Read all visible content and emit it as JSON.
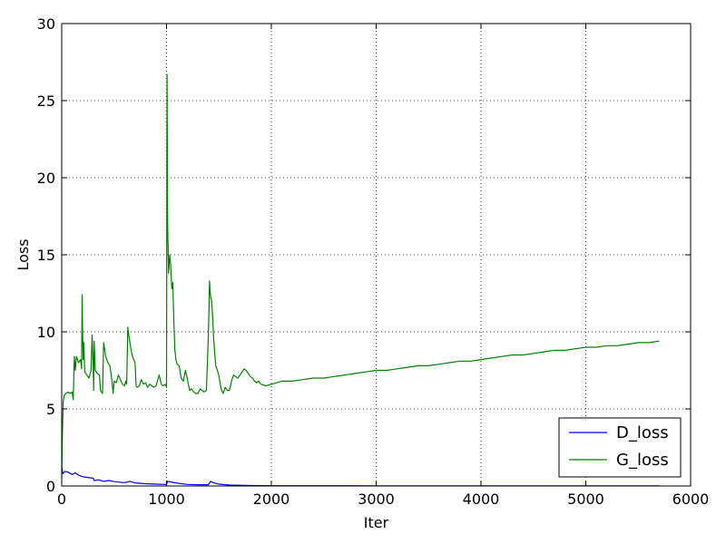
{
  "chart_data": {
    "type": "line",
    "title": "",
    "xlabel": "Iter",
    "ylabel": "Loss",
    "xlim": [
      0,
      6000
    ],
    "ylim": [
      0,
      30
    ],
    "xticks": [
      0,
      1000,
      2000,
      3000,
      4000,
      5000,
      6000
    ],
    "yticks": [
      0,
      5,
      10,
      15,
      20,
      25,
      30
    ],
    "xtick_labels": [
      "0",
      "1000",
      "2000",
      "3000",
      "4000",
      "5000",
      "6000"
    ],
    "ytick_labels": [
      "0",
      "5",
      "10",
      "15",
      "20",
      "25",
      "30"
    ],
    "grid": true,
    "legend_position": "lower-right",
    "series": [
      {
        "name": "D_loss",
        "color": "#0000ff",
        "x": [
          0,
          10,
          30,
          60,
          100,
          130,
          160,
          200,
          250,
          300,
          310,
          350,
          400,
          450,
          500,
          550,
          600,
          650,
          700,
          800,
          900,
          1000,
          1010,
          1100,
          1200,
          1300,
          1400,
          1420,
          1450,
          1500,
          1600,
          1800,
          2000,
          3000,
          4000,
          5000,
          5700
        ],
        "y": [
          1.3,
          0.8,
          0.95,
          0.9,
          0.75,
          0.85,
          0.7,
          0.6,
          0.55,
          0.5,
          0.35,
          0.4,
          0.3,
          0.35,
          0.28,
          0.25,
          0.22,
          0.3,
          0.2,
          0.15,
          0.12,
          0.1,
          0.3,
          0.18,
          0.1,
          0.08,
          0.08,
          0.3,
          0.2,
          0.12,
          0.06,
          0.03,
          0.02,
          0.01,
          0.01,
          0.01,
          0.01
        ]
      },
      {
        "name": "G_loss",
        "color": "#008000",
        "x": [
          0,
          5,
          15,
          25,
          40,
          60,
          80,
          100,
          110,
          120,
          130,
          140,
          160,
          180,
          190,
          195,
          200,
          205,
          210,
          220,
          240,
          260,
          280,
          290,
          300,
          305,
          310,
          320,
          340,
          360,
          370,
          380,
          390,
          400,
          420,
          440,
          460,
          480,
          490,
          500,
          520,
          540,
          560,
          580,
          600,
          610,
          620,
          630,
          640,
          660,
          680,
          700,
          710,
          720,
          740,
          760,
          780,
          800,
          820,
          840,
          860,
          880,
          900,
          930,
          950,
          970,
          990,
          1000,
          1005,
          1010,
          1020,
          1030,
          1040,
          1050,
          1060,
          1070,
          1080,
          1090,
          1100,
          1120,
          1140,
          1160,
          1180,
          1200,
          1220,
          1240,
          1260,
          1280,
          1300,
          1320,
          1340,
          1360,
          1380,
          1390,
          1400,
          1405,
          1410,
          1420,
          1430,
          1440,
          1450,
          1460,
          1470,
          1480,
          1490,
          1500,
          1520,
          1540,
          1560,
          1580,
          1600,
          1620,
          1640,
          1660,
          1680,
          1700,
          1720,
          1740,
          1760,
          1780,
          1800,
          1820,
          1840,
          1860,
          1880,
          1900,
          1950,
          2000,
          2100,
          2200,
          2300,
          2400,
          2500,
          2600,
          2700,
          2800,
          2900,
          3000,
          3100,
          3200,
          3300,
          3400,
          3500,
          3600,
          3700,
          3800,
          3900,
          4000,
          4100,
          4200,
          4300,
          4400,
          4500,
          4600,
          4700,
          4800,
          4900,
          5000,
          5100,
          5200,
          5300,
          5400,
          5500,
          5600,
          5700
        ],
        "y": [
          0.5,
          3,
          5.5,
          5.9,
          6.0,
          6.1,
          6.0,
          6.1,
          5.6,
          8.4,
          7.5,
          8.4,
          8.0,
          8.2,
          7.6,
          12.4,
          9.7,
          8.2,
          9.3,
          7.4,
          7.2,
          7.0,
          7.5,
          9.8,
          7.8,
          6.2,
          9.4,
          7.5,
          7.3,
          7.2,
          6.2,
          6.1,
          6.0,
          9.3,
          8.4,
          8.0,
          7.8,
          6.8,
          6.0,
          6.8,
          6.7,
          7.2,
          6.9,
          6.6,
          6.5,
          6.8,
          6.6,
          10.3,
          9.8,
          8.9,
          8.3,
          8.0,
          6.5,
          6.4,
          6.5,
          6.9,
          6.6,
          6.7,
          6.4,
          6.6,
          6.5,
          6.4,
          6.5,
          7.2,
          6.6,
          6.5,
          6.6,
          6.4,
          26.7,
          17.0,
          13.8,
          15.0,
          14.3,
          12.8,
          13.2,
          10.6,
          8.8,
          8.2,
          7.9,
          7.8,
          7.0,
          6.8,
          7.5,
          6.9,
          6.2,
          6.3,
          6.1,
          6.0,
          6.0,
          6.3,
          6.2,
          6.1,
          6.2,
          7.9,
          10.0,
          11.6,
          13.3,
          12.3,
          12.0,
          11.0,
          9.5,
          8.6,
          7.8,
          7.6,
          7.4,
          7.1,
          6.3,
          6.0,
          6.4,
          6.2,
          6.2,
          6.8,
          7.2,
          7.1,
          7.0,
          7.2,
          7.4,
          7.6,
          7.5,
          7.3,
          7.1,
          7.0,
          6.8,
          6.7,
          6.8,
          6.6,
          6.5,
          6.6,
          6.8,
          6.8,
          6.9,
          7.0,
          7.0,
          7.1,
          7.2,
          7.3,
          7.4,
          7.5,
          7.5,
          7.6,
          7.7,
          7.8,
          7.8,
          7.9,
          8.0,
          8.1,
          8.1,
          8.2,
          8.3,
          8.4,
          8.5,
          8.5,
          8.6,
          8.7,
          8.8,
          8.8,
          8.9,
          9.0,
          9.0,
          9.1,
          9.1,
          9.2,
          9.3,
          9.3,
          9.4
        ]
      }
    ]
  }
}
